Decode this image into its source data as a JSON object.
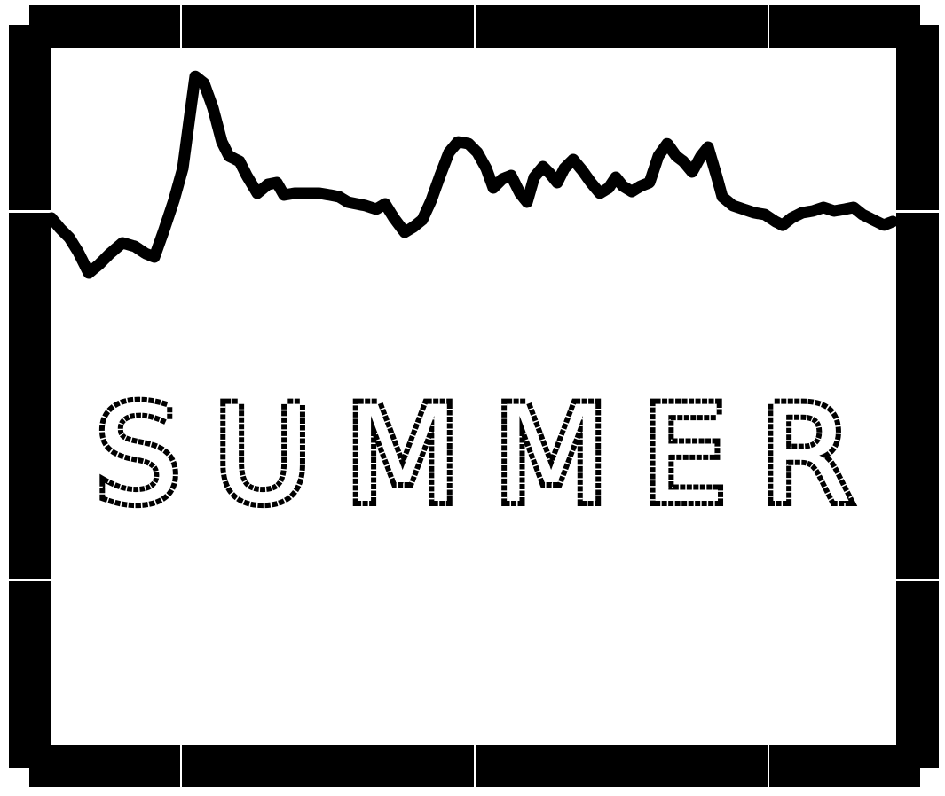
{
  "title": "SUMMER",
  "colors": {
    "ink": "#000000",
    "paper": "#ffffff"
  }
}
